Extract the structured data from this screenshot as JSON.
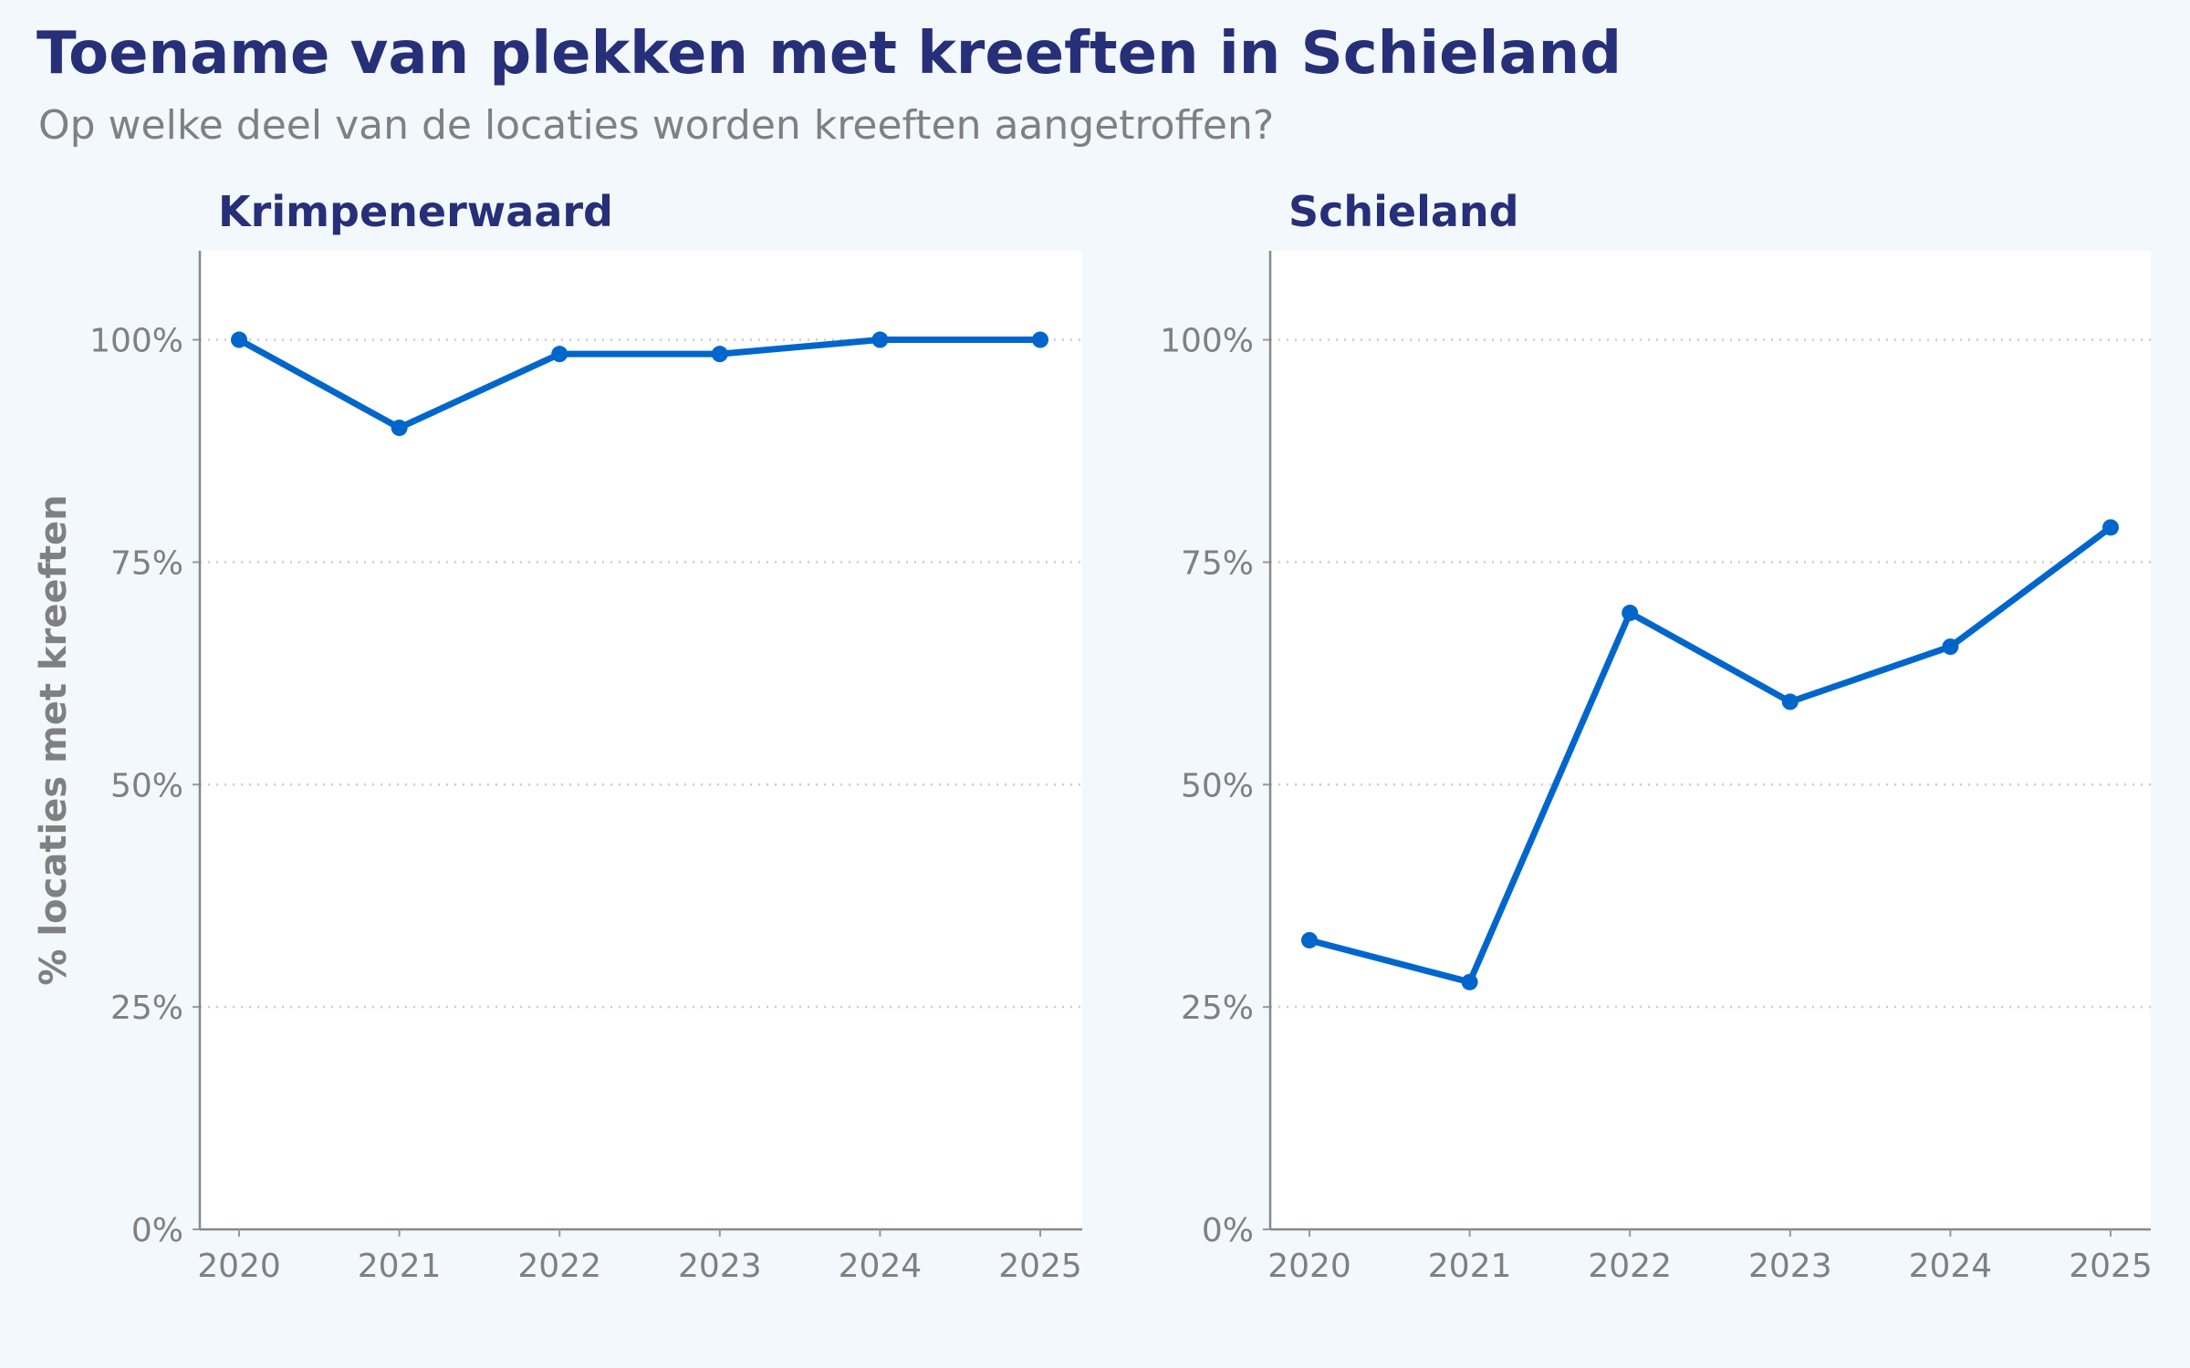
{
  "title": "Toename van plekken met kreeften in Schieland",
  "subtitle": "Op welke deel van de locaties worden kreeften aangetroffen?",
  "colors": {
    "line": "#0066cc",
    "title": "#262f78",
    "axis_text": "#808080",
    "background": "#f3f8fd",
    "panel": "#ffffff"
  },
  "chart_data": [
    {
      "type": "line",
      "title": "Krimpenerwaard",
      "ylabel": "% locaties met kreeften",
      "x": [
        2020,
        2021,
        2022,
        2023,
        2024,
        2025
      ],
      "xticks": [
        "2020",
        "2021",
        "2022",
        "2023",
        "2024",
        "2025"
      ],
      "values": [
        100,
        90.1,
        98.4,
        98.4,
        100,
        100
      ],
      "ylim": [
        0,
        110
      ],
      "yticks": [
        "0%",
        "25%",
        "50%",
        "75%",
        "100%"
      ],
      "grid": "horizontal dotted"
    },
    {
      "type": "line",
      "title": "Schieland",
      "x": [
        2020,
        2021,
        2022,
        2023,
        2024,
        2025
      ],
      "xticks": [
        "2020",
        "2021",
        "2022",
        "2023",
        "2024",
        "2025"
      ],
      "values": [
        32.5,
        27.8,
        69.3,
        59.3,
        65.5,
        78.9
      ],
      "ylim": [
        0,
        110
      ],
      "yticks": [
        "0%",
        "25%",
        "50%",
        "75%",
        "100%"
      ],
      "grid": "horizontal dotted"
    }
  ]
}
